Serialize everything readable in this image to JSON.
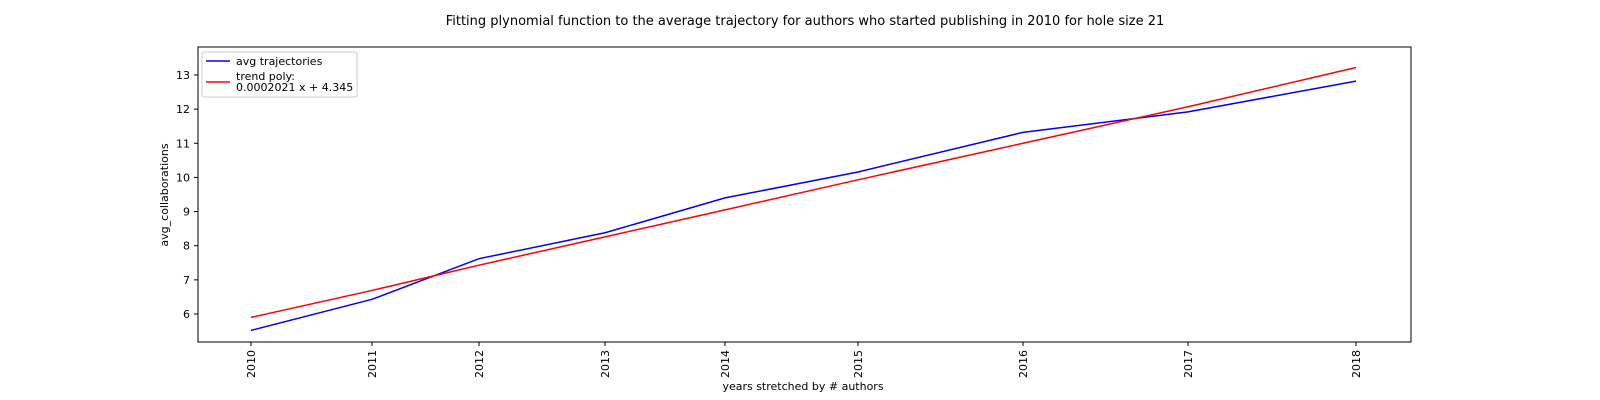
{
  "chart_data": {
    "type": "line",
    "title": "Fitting plynomial function to the average trajectory for authors who started publishing in 2010 for hole size 21",
    "xlabel": "years stretched by # authors",
    "ylabel": "avg_collaborations",
    "x": [
      2010,
      2011,
      2012,
      2013,
      2014,
      2015,
      2016,
      2017,
      2018
    ],
    "x_tick_labels": [
      "2010",
      "2011",
      "2012",
      "2013",
      "2014",
      "2015",
      "2016",
      "2017",
      "2018"
    ],
    "y_ticks": [
      6,
      7,
      8,
      9,
      10,
      11,
      12,
      13
    ],
    "ylim": [
      5.18,
      13.82
    ],
    "grid": false,
    "legend_position": "top-left",
    "series": [
      {
        "name": "avg trajectories",
        "color": "#0000ff",
        "values": [
          5.52,
          6.43,
          7.62,
          8.38,
          9.4,
          10.16,
          11.32,
          11.92,
          12.82
        ]
      },
      {
        "name": "trend poly:\n0.0002021 x + 4.345",
        "legend_lines": [
          "trend poly:",
          "0.0002021 x + 4.345"
        ],
        "color": "#ff0000",
        "values": [
          5.9,
          6.69,
          7.43,
          8.26,
          9.05,
          9.93,
          11.0,
          12.07,
          13.22
        ]
      }
    ]
  }
}
